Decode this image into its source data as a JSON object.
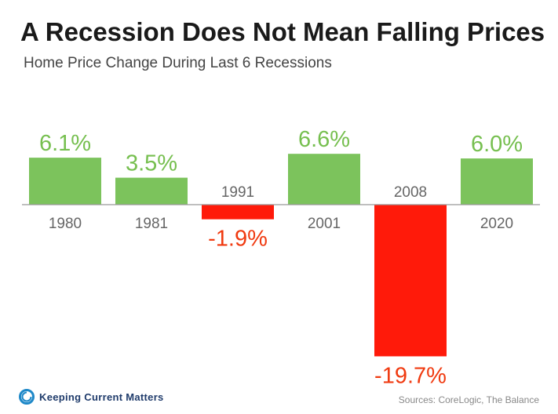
{
  "chart_data": {
    "type": "bar",
    "title": "A Recession Does Not Mean Falling Prices",
    "subtitle": "Home Price Change During Last 6 Recessions",
    "categories": [
      "1980",
      "1981",
      "1991",
      "2001",
      "2008",
      "2020"
    ],
    "values": [
      6.1,
      3.5,
      -1.9,
      6.6,
      -19.7,
      6.0
    ],
    "value_labels": [
      "6.1%",
      "3.5%",
      "-1.9%",
      "6.6%",
      "-19.7%",
      "6.0%"
    ],
    "positive_color": "#7cc35c",
    "negative_color": "#ff1a0a",
    "positive_label_color": "#76bf4f",
    "negative_label_color": "#f03a10",
    "axis_color": "#999999",
    "ylim": [
      -19.7,
      6.6
    ]
  },
  "footer": {
    "logo_text": "Keeping Current Matters",
    "sources": "Sources: CoreLogic, The Balance",
    "logo_color": "#1e88c8"
  }
}
